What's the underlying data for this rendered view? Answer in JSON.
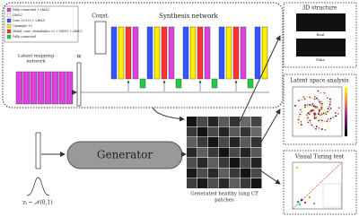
{
  "legend": {
    "items": [
      "Fully connected + LReLU",
      "LReLU",
      "Conv 3×3×3 + LReLU",
      "Upsample ×2",
      "Modul. conv., demodulate ×2 + DNN3 + LReLU",
      "Fully connected"
    ]
  },
  "mapping": {
    "label_line1": "Latent mapping",
    "label_line2": "network",
    "w": "w"
  },
  "synthesis": {
    "const": "Const.",
    "title": "Synthesis network"
  },
  "generator": {
    "label": "Generator",
    "z": "zᵢ ~ 𝒩(0,1)"
  },
  "output": {
    "caption_line1": "Generated healthy lung CT",
    "caption_line2": "patches"
  },
  "panels": [
    {
      "title": "3D structure",
      "labels": [
        "Real",
        "Fake"
      ]
    },
    {
      "title": "Latent space analysis"
    },
    {
      "title": "Visual Turing test"
    }
  ]
}
